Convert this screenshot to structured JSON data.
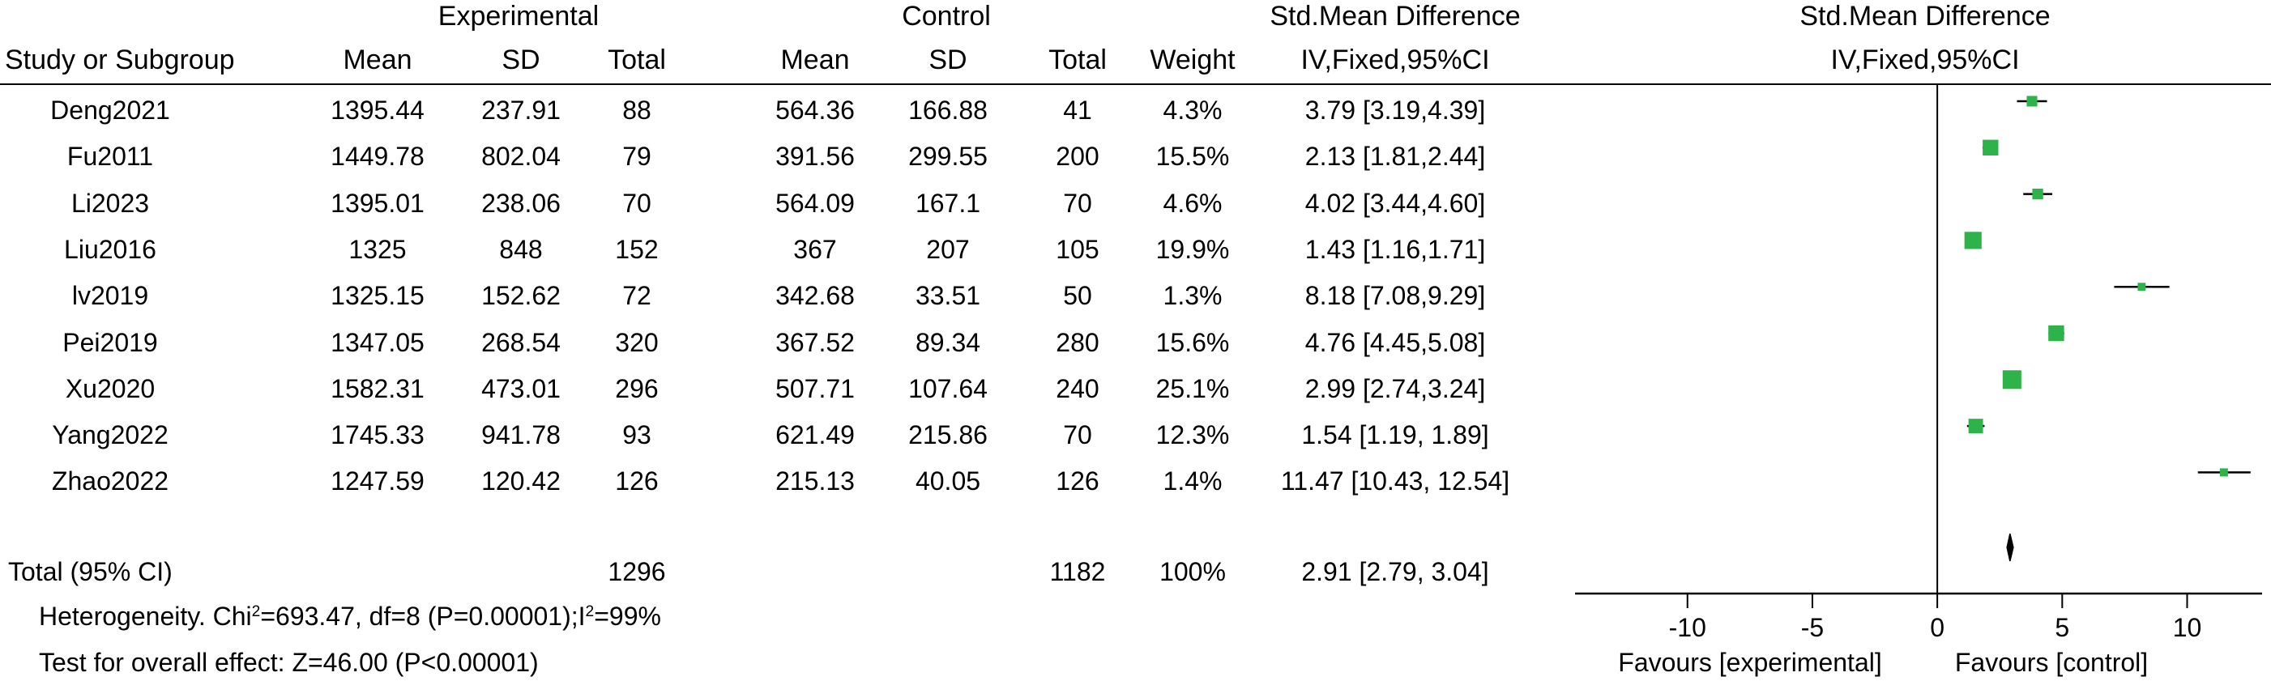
{
  "header": {
    "experimental": "Experimental",
    "control": "Control",
    "smd_table": "Std.Mean Difference",
    "smd_plot": "Std.Mean Difference",
    "method_table": "IV,Fixed,95%CI",
    "method_plot": "IV,Fixed,95%CI",
    "study_col": "Study or Subgroup",
    "exp_mean": "Mean",
    "exp_sd": "SD",
    "exp_total": "Total",
    "ctl_mean": "Mean",
    "ctl_sd": "SD",
    "ctl_total": "Total",
    "weight": "Weight"
  },
  "rows": [
    {
      "study": "Deng2021",
      "em": "1395.44",
      "esd": "237.91",
      "et": "88",
      "cm": "564.36",
      "csd": "166.88",
      "ct": "41",
      "w": "4.3%",
      "ci": "3.79 [3.19,4.39]"
    },
    {
      "study": "Fu2011",
      "em": "1449.78",
      "esd": "802.04",
      "et": "79",
      "cm": "391.56",
      "csd": "299.55",
      "ct": "200",
      "w": "15.5%",
      "ci": "2.13 [1.81,2.44]"
    },
    {
      "study": "Li2023",
      "em": "1395.01",
      "esd": "238.06",
      "et": "70",
      "cm": "564.09",
      "csd": "167.1",
      "ct": "70",
      "w": "4.6%",
      "ci": "4.02 [3.44,4.60]"
    },
    {
      "study": "Liu2016",
      "em": "1325",
      "esd": "848",
      "et": "152",
      "cm": "367",
      "csd": "207",
      "ct": "105",
      "w": "19.9%",
      "ci": "1.43 [1.16,1.71]"
    },
    {
      "study": "lv2019",
      "em": "1325.15",
      "esd": "152.62",
      "et": "72",
      "cm": "342.68",
      "csd": "33.51",
      "ct": "50",
      "w": "1.3%",
      "ci": "8.18 [7.08,9.29]"
    },
    {
      "study": "Pei2019",
      "em": "1347.05",
      "esd": "268.54",
      "et": "320",
      "cm": "367.52",
      "csd": "89.34",
      "ct": "280",
      "w": "15.6%",
      "ci": "4.76 [4.45,5.08]"
    },
    {
      "study": "Xu2020",
      "em": "1582.31",
      "esd": "473.01",
      "et": "296",
      "cm": "507.71",
      "csd": "107.64",
      "ct": "240",
      "w": "25.1%",
      "ci": "2.99 [2.74,3.24]"
    },
    {
      "study": "Yang2022",
      "em": "1745.33",
      "esd": "941.78",
      "et": "93",
      "cm": "621.49",
      "csd": "215.86",
      "ct": "70",
      "w": "12.3%",
      "ci": "1.54 [1.19, 1.89]"
    },
    {
      "study": "Zhao2022",
      "em": "1247.59",
      "esd": "120.42",
      "et": "126",
      "cm": "215.13",
      "csd": "40.05",
      "ct": "126",
      "w": "1.4%",
      "ci": "11.47 [10.43, 12.54]"
    }
  ],
  "total": {
    "label": "Total (95% CI)",
    "et": "1296",
    "ct": "1182",
    "w": "100%",
    "ci": "2.91 [2.79, 3.04]"
  },
  "heterogeneity": {
    "prefix": "Heterogeneity. Chi",
    "sup1": "2",
    "mid": "=693.47, df=8 (P=0.00001);I",
    "sup2": "2",
    "suffix": "=99%"
  },
  "overall_effect": "Test for overall effect: Z=46.00 (P<0.00001)",
  "favours_left": "Favours [experimental]",
  "favours_right": "Favours [control]",
  "chart_data": {
    "type": "forest",
    "title": "Std.Mean Difference",
    "subtitle": "IV,Fixed,95%CI",
    "xlim": [
      -14.5,
      13
    ],
    "ticks": [
      -10,
      -5,
      0,
      5,
      10
    ],
    "tick_labels": [
      "-10",
      "-5",
      "0",
      "5",
      "10"
    ],
    "marker_color": "#2db34a",
    "studies": [
      {
        "name": "Deng2021",
        "est": 3.79,
        "lo": 3.19,
        "hi": 4.39,
        "weight": 4.3
      },
      {
        "name": "Fu2011",
        "est": 2.13,
        "lo": 1.81,
        "hi": 2.44,
        "weight": 15.5
      },
      {
        "name": "Li2023",
        "est": 4.02,
        "lo": 3.44,
        "hi": 4.6,
        "weight": 4.6
      },
      {
        "name": "Liu2016",
        "est": 1.43,
        "lo": 1.16,
        "hi": 1.71,
        "weight": 19.9
      },
      {
        "name": "lv2019",
        "est": 8.18,
        "lo": 7.08,
        "hi": 9.29,
        "weight": 1.3
      },
      {
        "name": "Pei2019",
        "est": 4.76,
        "lo": 4.45,
        "hi": 5.08,
        "weight": 15.6
      },
      {
        "name": "Xu2020",
        "est": 2.99,
        "lo": 2.74,
        "hi": 3.24,
        "weight": 25.1
      },
      {
        "name": "Yang2022",
        "est": 1.54,
        "lo": 1.19,
        "hi": 1.89,
        "weight": 12.3
      },
      {
        "name": "Zhao2022",
        "est": 11.47,
        "lo": 10.43,
        "hi": 12.54,
        "weight": 1.4
      }
    ],
    "pooled": {
      "est": 2.91,
      "lo": 2.79,
      "hi": 3.04
    }
  }
}
